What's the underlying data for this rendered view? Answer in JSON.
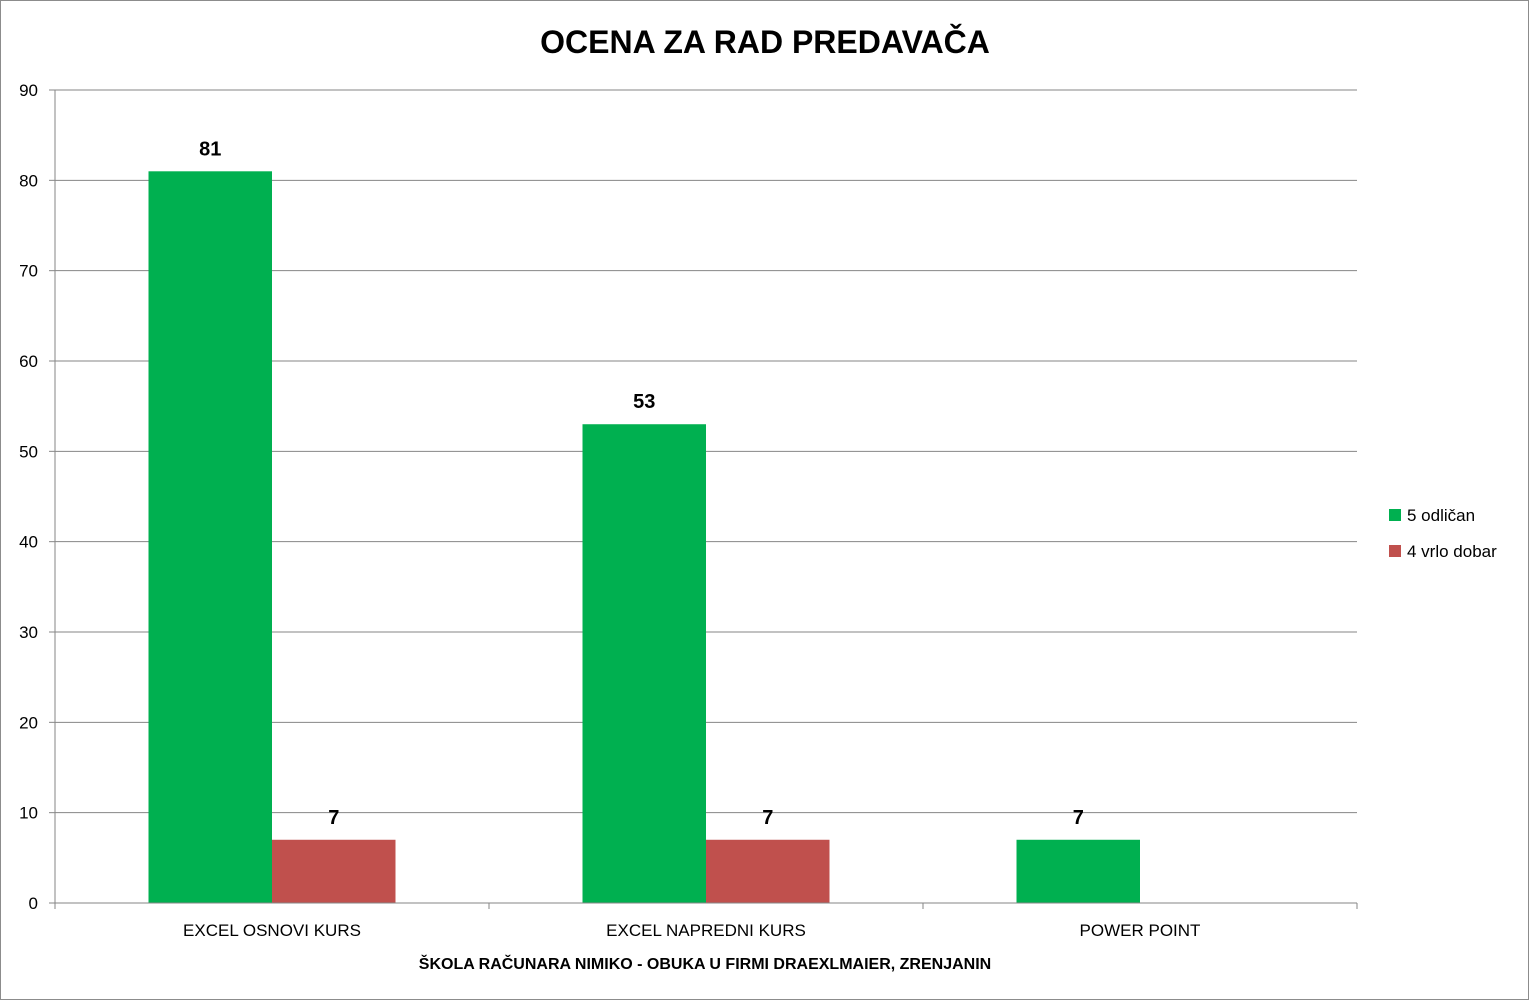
{
  "chart_data": {
    "type": "bar",
    "title": "OCENA ZA RAD PREDAVAČA",
    "xlabel": "ŠKOLA RAČUNARA NIMIKO - OBUKA U FIRMI DRAEXLMAIER, ZRENJANIN",
    "ylabel": "",
    "categories": [
      "EXCEL OSNOVI KURS",
      "EXCEL NAPREDNI KURS",
      "POWER POINT"
    ],
    "series": [
      {
        "name": "5 odličan",
        "color": "#00b050",
        "values": [
          81,
          53,
          7
        ]
      },
      {
        "name": "4 vrlo dobar",
        "color": "#c0504d",
        "values": [
          7,
          7,
          null
        ]
      }
    ],
    "ylim": [
      0,
      90
    ],
    "yticks": [
      0,
      10,
      20,
      30,
      40,
      50,
      60,
      70,
      80,
      90
    ],
    "grid": true,
    "legend": "right",
    "data_labels": true
  }
}
